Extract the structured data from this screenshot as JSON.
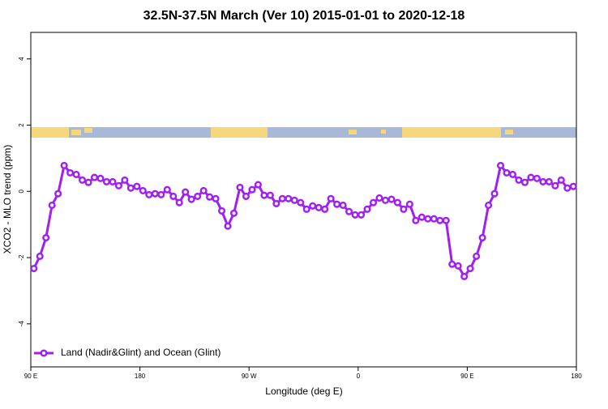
{
  "chart_data": {
    "type": "line",
    "title": "32.5N-37.5N March (Ver 10)   2015-01-01 to 2020-12-18",
    "x_label": "Longitude (deg E)",
    "y_label": "XCO2 - MLO trend (ppm)",
    "xlim": [
      90,
      540
    ],
    "xticks": [
      {
        "value": 90,
        "label": "90 E"
      },
      {
        "value": 180,
        "label": "180"
      },
      {
        "value": 270,
        "label": "90 W"
      },
      {
        "value": 360,
        "label": "0"
      },
      {
        "value": 450,
        "label": "90 E"
      },
      {
        "value": 540,
        "label": "180"
      }
    ],
    "ylim": [
      -5.3,
      4.8
    ],
    "yticks": [
      -4,
      -2,
      0,
      2,
      4
    ],
    "legend": "bottom-left",
    "x": [
      92.5,
      97.5,
      102.5,
      107.5,
      112.5,
      117.5,
      122.5,
      127.5,
      132.5,
      137.5,
      142.5,
      147.5,
      152.5,
      157.5,
      162.5,
      167.5,
      172.5,
      177.5,
      182.5,
      187.5,
      192.5,
      197.5,
      202.5,
      207.5,
      212.5,
      217.5,
      222.5,
      227.5,
      232.5,
      237.5,
      242.5,
      247.5,
      252.5,
      257.5,
      262.5,
      267.5,
      272.5,
      277.5,
      282.5,
      287.5,
      292.5,
      297.5,
      302.5,
      307.5,
      312.5,
      317.5,
      322.5,
      327.5,
      332.5,
      337.5,
      342.5,
      347.5,
      352.5,
      357.5,
      362.5,
      367.5,
      372.5,
      377.5,
      382.5,
      387.5,
      392.5,
      397.5,
      402.5,
      407.5,
      412.5,
      417.5,
      422.5,
      427.5,
      432.5,
      437.5,
      442.5,
      447.5,
      452.5,
      457.5,
      462.5,
      467.5,
      472.5,
      477.5,
      482.5,
      487.5,
      492.5,
      497.5,
      502.5,
      507.5,
      512.5,
      517.5,
      522.5,
      527.5,
      532.5,
      537.5
    ],
    "series": [
      {
        "name": "Land (Nadir&Glint) and Ocean (Glint)",
        "color": "#a020f0",
        "values": [
          -2.33,
          -1.96,
          -1.4,
          -0.42,
          -0.07,
          0.78,
          0.56,
          0.51,
          0.34,
          0.27,
          0.42,
          0.39,
          0.29,
          0.29,
          0.17,
          0.34,
          0.1,
          0.15,
          0.02,
          -0.1,
          -0.07,
          -0.1,
          0.05,
          -0.15,
          -0.34,
          -0.02,
          -0.24,
          -0.15,
          0.02,
          -0.17,
          -0.22,
          -0.59,
          -1.05,
          -0.66,
          0.12,
          -0.15,
          0.05,
          0.2,
          -0.12,
          -0.12,
          -0.37,
          -0.22,
          -0.22,
          -0.27,
          -0.34,
          -0.54,
          -0.44,
          -0.49,
          -0.54,
          -0.22,
          -0.39,
          -0.42,
          -0.61,
          -0.71,
          -0.71,
          -0.54,
          -0.34,
          -0.2,
          -0.27,
          -0.24,
          -0.34,
          -0.54,
          -0.39,
          -0.88,
          -0.78,
          -0.83,
          -0.83,
          -0.88,
          -0.88,
          -2.2,
          -2.25,
          -2.57,
          -2.33,
          -1.96,
          -1.4,
          -0.42,
          -0.07,
          0.78,
          0.56,
          0.51,
          0.34,
          0.27,
          0.42,
          0.39,
          0.29,
          0.29,
          0.17,
          0.34,
          0.1,
          0.15
        ]
      }
    ]
  }
}
